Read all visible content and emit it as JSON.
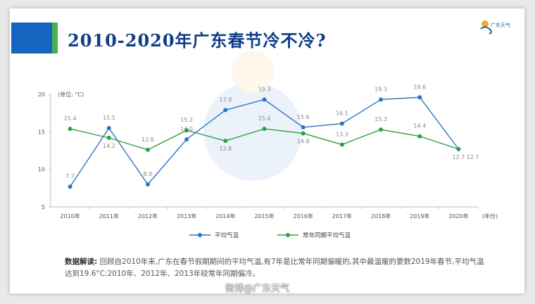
{
  "header": {
    "title": "2010-2020年广东春节冷不冷?",
    "logo_text": "广东天气"
  },
  "colors": {
    "title": "#103d86",
    "accent": "#1565c0",
    "accent_green": "#4caf50",
    "series_avg": "#2e74c4",
    "series_normal": "#2ea043"
  },
  "chart_data": {
    "type": "line",
    "title": "",
    "ylabel": "(单位: °C)",
    "xlabel": "(年份)",
    "ylim": [
      5,
      20
    ],
    "yticks": [
      5,
      10,
      15,
      20
    ],
    "categories": [
      "2010年",
      "2011年",
      "2012年",
      "2013年",
      "2014年",
      "2015年",
      "2016年",
      "2017年",
      "2018年",
      "2019年",
      "2020年"
    ],
    "series": [
      {
        "name": "平均气温",
        "values": [
          7.7,
          15.5,
          8.0,
          14.0,
          17.9,
          19.3,
          15.6,
          16.1,
          19.3,
          19.6,
          12.7
        ]
      },
      {
        "name": "常年同期平均气温",
        "values": [
          15.4,
          14.2,
          12.6,
          15.2,
          13.8,
          15.4,
          14.8,
          13.3,
          15.3,
          14.4,
          12.7
        ]
      }
    ],
    "legend": "bottom"
  },
  "note": {
    "label": "数据解读:",
    "text": "回顾自2010年来,广东在春节假期期间的平均气温,有7年是比常年同期偏暖的,其中最温暖的要数2019年春节,平均气温达到19.6°C;2010年、2012年、2013年较常年同期偏冷。"
  },
  "watermark": "微博@广东天气"
}
